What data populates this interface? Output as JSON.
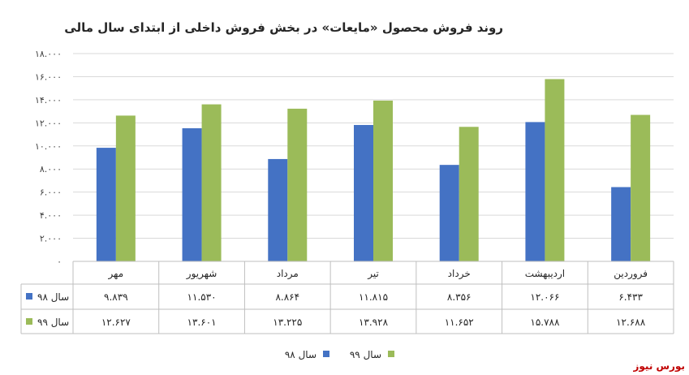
{
  "chart_data": {
    "type": "bar",
    "title": "روند فروش محصول «مایعات» در بخش فروش داخلی از ابتدای سال مالی",
    "categories": [
      "فروردین",
      "اردیبهشت",
      "خرداد",
      "تیر",
      "مرداد",
      "شهریور",
      "مهر"
    ],
    "series": [
      {
        "name": "سال ۹۸",
        "color": "#4472c4",
        "values": [
          6433,
          12066,
          8356,
          11815,
          8864,
          11530,
          9839
        ],
        "labels": [
          "۶.۴۳۳",
          "۱۲.۰۶۶",
          "۸.۳۵۶",
          "۱۱.۸۱۵",
          "۸.۸۶۴",
          "۱۱.۵۳۰",
          "۹.۸۳۹"
        ]
      },
      {
        "name": "سال ۹۹",
        "color": "#9bbb59",
        "values": [
          12688,
          15788,
          11652,
          13928,
          13225,
          13601,
          12627
        ],
        "labels": [
          "۱۲.۶۸۸",
          "۱۵.۷۸۸",
          "۱۱.۶۵۲",
          "۱۳.۹۲۸",
          "۱۳.۲۲۵",
          "۱۳.۶۰۱",
          "۱۲.۶۲۷"
        ]
      }
    ],
    "y_ticks": [
      0,
      2000,
      4000,
      6000,
      8000,
      10000,
      12000,
      14000,
      16000,
      18000
    ],
    "y_tick_labels": [
      "۰",
      "۲.۰۰۰",
      "۴.۰۰۰",
      "۶.۰۰۰",
      "۸.۰۰۰",
      "۱۰.۰۰۰",
      "۱۲.۰۰۰",
      "۱۴.۰۰۰",
      "۱۶.۰۰۰",
      "۱۸.۰۰۰"
    ],
    "ylim": [
      0,
      18000
    ],
    "grid": true,
    "direction": "rtl",
    "legend": "bottom-center",
    "data_table": true
  },
  "brand": {
    "name": "بورس نیوز",
    "color": "#c00000"
  }
}
